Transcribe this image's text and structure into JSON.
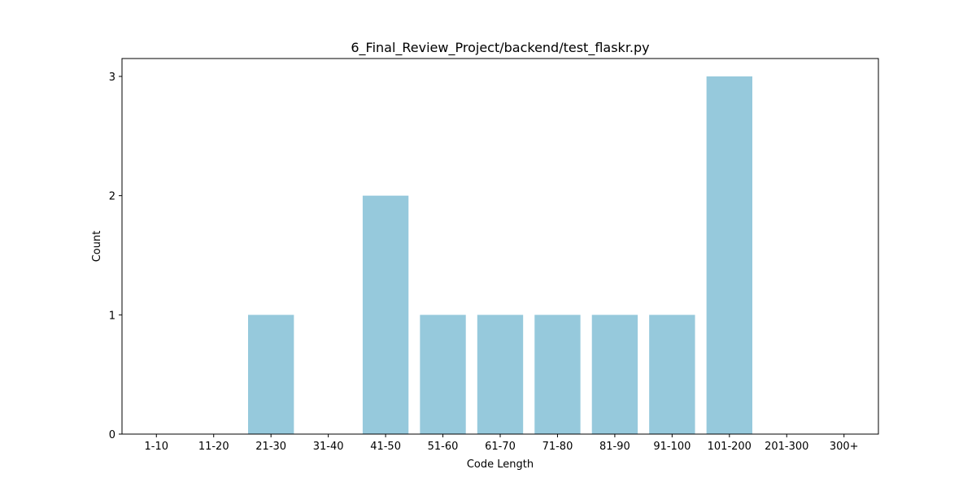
{
  "chart_data": {
    "type": "bar",
    "title": "6_Final_Review_Project/backend/test_flaskr.py",
    "xlabel": "Code Length",
    "ylabel": "Count",
    "categories": [
      "1-10",
      "11-20",
      "21-30",
      "31-40",
      "41-50",
      "51-60",
      "61-70",
      "71-80",
      "81-90",
      "91-100",
      "101-200",
      "201-300",
      "300+"
    ],
    "values": [
      0,
      0,
      1,
      0,
      2,
      1,
      1,
      1,
      1,
      1,
      3,
      0,
      0
    ],
    "ylim": [
      0,
      3.15
    ],
    "yticks": [
      0,
      1,
      2,
      3
    ],
    "bar_color": "#96c9dc",
    "grid": false,
    "legend": "none"
  }
}
